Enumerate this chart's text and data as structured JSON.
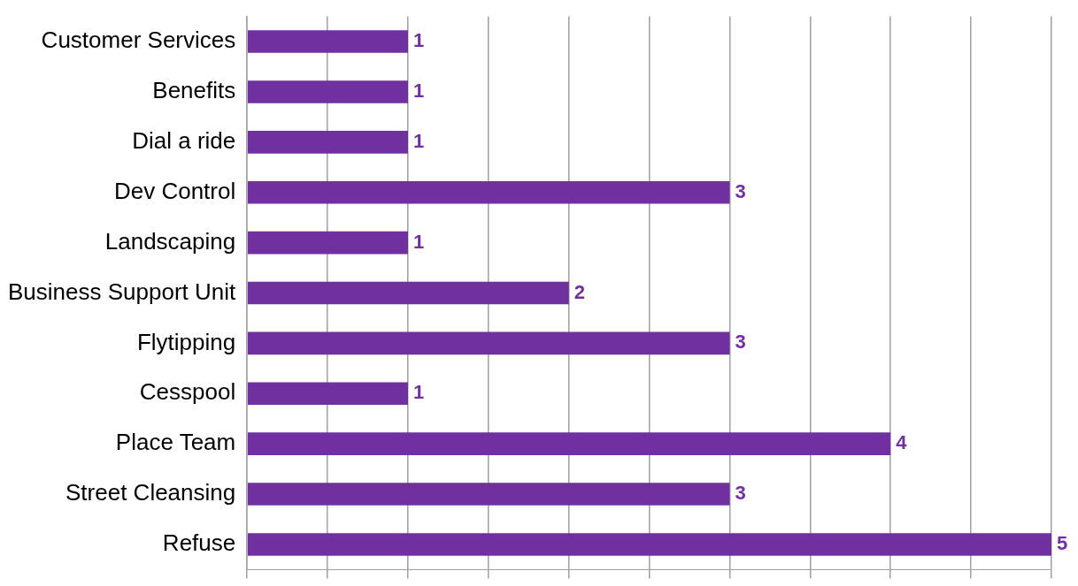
{
  "chart_data": {
    "type": "bar",
    "orientation": "horizontal",
    "categories": [
      "Customer Services",
      "Benefits",
      "Dial a ride",
      "Dev Control",
      "Landscaping",
      "Business Support Unit",
      "Flytipping",
      "Cesspool",
      "Place Team",
      "Street Cleansing",
      "Refuse"
    ],
    "values": [
      1,
      1,
      1,
      3,
      1,
      2,
      3,
      1,
      4,
      3,
      5
    ],
    "color": "#7030a0",
    "xlim": [
      0,
      5
    ],
    "xticks": [
      {
        "value": 0,
        "label": null
      },
      {
        "value": 0.5,
        "label": null
      },
      {
        "value": 1,
        "label": null
      },
      {
        "value": 1.5,
        "label": null
      },
      {
        "value": 2,
        "label": null
      },
      {
        "value": 2.5,
        "label": null
      },
      {
        "value": 3,
        "label": null
      },
      {
        "value": 3.5,
        "label": null
      },
      {
        "value": 4,
        "label": null
      },
      {
        "value": 4.5,
        "label": null
      },
      {
        "value": 5,
        "label": null
      }
    ],
    "tick_labels": "y",
    "grid": "x",
    "data_labels": true
  }
}
